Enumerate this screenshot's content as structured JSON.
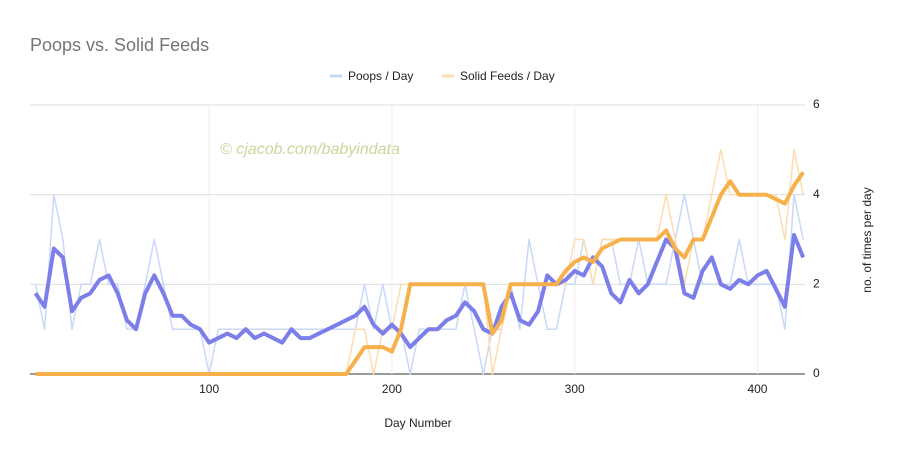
{
  "chart_data": {
    "type": "line",
    "title": "Poops vs. Solid Feeds",
    "annotation": "© cjacob.com/babyindata",
    "xlabel": "Day Number",
    "ylabel": "no. of times per day",
    "x": [
      5,
      10,
      15,
      20,
      25,
      30,
      35,
      40,
      45,
      50,
      55,
      60,
      65,
      70,
      75,
      80,
      85,
      90,
      95,
      100,
      105,
      110,
      115,
      120,
      125,
      130,
      135,
      140,
      145,
      150,
      155,
      160,
      165,
      170,
      175,
      180,
      185,
      190,
      195,
      200,
      205,
      210,
      215,
      220,
      225,
      230,
      235,
      240,
      245,
      250,
      255,
      260,
      265,
      270,
      275,
      280,
      285,
      290,
      295,
      300,
      305,
      310,
      315,
      320,
      325,
      330,
      335,
      340,
      345,
      350,
      355,
      360,
      365,
      370,
      375,
      380,
      385,
      390,
      395,
      400,
      405,
      410,
      415,
      420,
      425
    ],
    "xlim": [
      2,
      426
    ],
    "xticks": [
      100,
      200,
      300,
      400
    ],
    "ylim": [
      0,
      6
    ],
    "yticks": [
      0,
      2,
      4,
      6
    ],
    "grid": true,
    "legend": "top",
    "series": [
      {
        "name": "Poops / Day",
        "color": "#c9d8f8",
        "trend_color": "#7c7ee9",
        "values": [
          2,
          1,
          4,
          3,
          1,
          2,
          2,
          3,
          2,
          2,
          1,
          1,
          2,
          3,
          2,
          1,
          1,
          1,
          1,
          0,
          1,
          1,
          1,
          1,
          1,
          1,
          1,
          1,
          1,
          1,
          1,
          1,
          1,
          1,
          1,
          1,
          2,
          1,
          2,
          1,
          1,
          0,
          1,
          1,
          1,
          1,
          1,
          2,
          1,
          0,
          1,
          1,
          2,
          1,
          3,
          2,
          1,
          1,
          2,
          2,
          3,
          2,
          3,
          3,
          2,
          2,
          3,
          2,
          2,
          2,
          3,
          4,
          3,
          2,
          2,
          2,
          2,
          3,
          2,
          2,
          2,
          2,
          1,
          4,
          3
        ],
        "trend": [
          1.8,
          1.5,
          2.8,
          2.6,
          1.4,
          1.7,
          1.8,
          2.1,
          2.2,
          1.8,
          1.2,
          1.0,
          1.8,
          2.2,
          1.8,
          1.3,
          1.3,
          1.1,
          1.0,
          0.7,
          0.8,
          0.9,
          0.8,
          1.0,
          0.8,
          0.9,
          0.8,
          0.7,
          1.0,
          0.8,
          0.8,
          0.9,
          1.0,
          1.1,
          1.2,
          1.3,
          1.5,
          1.1,
          0.9,
          1.1,
          0.9,
          0.6,
          0.8,
          1.0,
          1.0,
          1.2,
          1.3,
          1.6,
          1.4,
          1.0,
          0.9,
          1.5,
          1.8,
          1.2,
          1.1,
          1.4,
          2.2,
          2.0,
          2.1,
          2.3,
          2.2,
          2.6,
          2.4,
          1.8,
          1.6,
          2.1,
          1.8,
          2.0,
          2.5,
          3.0,
          2.8,
          1.8,
          1.7,
          2.3,
          2.6,
          2.0,
          1.9,
          2.1,
          2.0,
          2.2,
          2.3,
          1.9,
          1.5,
          3.1,
          2.6
        ]
      },
      {
        "name": "Solid Feeds / Day",
        "color": "#fddcae",
        "trend_color": "#f6b14c",
        "values": [
          0,
          0,
          0,
          0,
          0,
          0,
          0,
          0,
          0,
          0,
          0,
          0,
          0,
          0,
          0,
          0,
          0,
          0,
          0,
          0,
          0,
          0,
          0,
          0,
          0,
          0,
          0,
          0,
          0,
          0,
          0,
          0,
          0,
          0,
          0,
          1,
          1,
          0,
          1,
          1,
          2,
          2,
          2,
          2,
          2,
          2,
          2,
          2,
          2,
          2,
          0,
          1,
          2,
          2,
          2,
          2,
          2,
          2,
          2,
          3,
          3,
          2,
          3,
          3,
          3,
          3,
          3,
          3,
          3,
          4,
          3,
          2,
          3,
          3,
          4,
          5,
          4,
          4,
          4,
          4,
          4,
          4,
          3,
          5,
          4
        ],
        "trend": [
          0,
          0,
          0,
          0,
          0,
          0,
          0,
          0,
          0,
          0,
          0,
          0,
          0,
          0,
          0,
          0,
          0,
          0,
          0,
          0,
          0,
          0,
          0,
          0,
          0,
          0,
          0,
          0,
          0,
          0,
          0,
          0,
          0,
          0,
          0,
          0.3,
          0.6,
          0.6,
          0.6,
          0.5,
          1.0,
          2.0,
          2.0,
          2.0,
          2.0,
          2.0,
          2.0,
          2.0,
          2.0,
          2.0,
          0.9,
          1.2,
          2.0,
          2.0,
          2.0,
          2.0,
          2.0,
          2.0,
          2.3,
          2.5,
          2.6,
          2.5,
          2.8,
          2.9,
          3.0,
          3.0,
          3.0,
          3.0,
          3.0,
          3.2,
          2.8,
          2.6,
          3.0,
          3.0,
          3.5,
          4.0,
          4.3,
          4.0,
          4.0,
          4.0,
          4.0,
          3.9,
          3.8,
          4.2,
          4.5
        ]
      }
    ]
  }
}
